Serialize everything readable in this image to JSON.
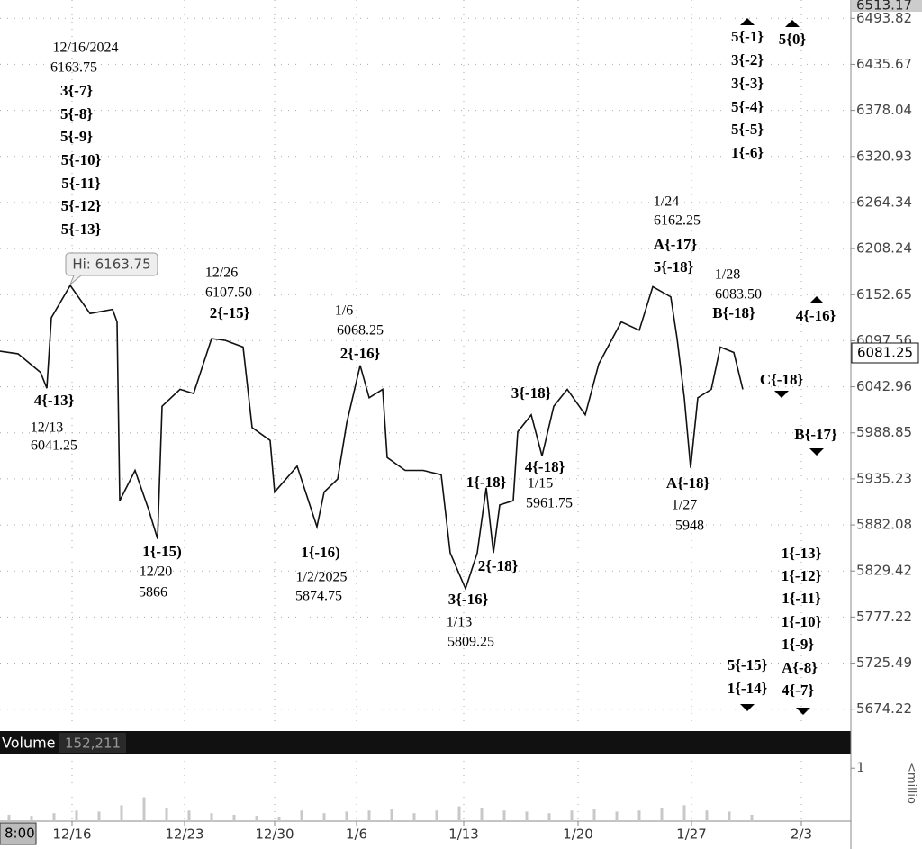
{
  "chart_data": {
    "type": "line",
    "log_scale": true,
    "grid": true,
    "line_color": "#111111",
    "ylim": [
      5657,
      6517
    ],
    "yticks": [
      6493.82,
      6435.67,
      6378.04,
      6320.93,
      6264.34,
      6208.24,
      6152.65,
      6097.56,
      6042.96,
      5988.85,
      5935.23,
      5882.08,
      5829.42,
      5777.22,
      5725.49,
      5674.22
    ],
    "xlim": [
      0,
      37.8
    ],
    "xticks": [
      {
        "value": 3.2,
        "label": "12/16"
      },
      {
        "value": 8.2,
        "label": "12/23"
      },
      {
        "value": 12.2,
        "label": "12/30"
      },
      {
        "value": 15.84,
        "label": "1/6"
      },
      {
        "value": 20.6,
        "label": "1/13"
      },
      {
        "value": 25.68,
        "label": "1/20"
      },
      {
        "value": 30.72,
        "label": "1/27"
      },
      {
        "value": 35.6,
        "label": "2/3"
      }
    ],
    "high_label": "6513.17",
    "last_price_label": "6081.25",
    "time_label": "8:00",
    "hi_callout": "Hi: 6163.75",
    "series": [
      {
        "x": [
          0,
          0.8,
          1.8,
          2.08,
          2.28,
          3.12,
          4,
          5,
          5.2,
          5.32,
          6,
          6.6,
          7,
          7.2,
          8,
          8.6,
          9.4,
          10,
          10.8,
          11.2,
          12,
          12.2,
          13.2,
          14.08,
          14.4,
          15,
          15.4,
          16,
          16.4,
          17,
          17.2,
          18,
          18.8,
          19.6,
          20,
          20.68,
          21.2,
          21.6,
          21.92,
          22.2,
          22.8,
          23,
          23.6,
          24.08,
          24.6,
          25.2,
          26,
          26.6,
          27.6,
          28.4,
          29,
          29.8,
          30.08,
          30.4,
          30.68,
          31,
          31.6,
          32,
          32.6,
          33
        ],
        "values": [
          6085,
          6082,
          6060,
          6041.25,
          6125,
          6163.75,
          6130,
          6135,
          6120,
          5910,
          5945,
          5900,
          5866,
          6020,
          6040,
          6035,
          6100,
          6098,
          6090,
          5995,
          5980,
          5920,
          5950,
          5880,
          5920,
          5935,
          6000,
          6068.25,
          6030,
          6040,
          5960,
          5945,
          5945,
          5940,
          5850,
          5809.25,
          5850,
          5925,
          5850,
          5905,
          5910,
          5990,
          6010,
          5961.75,
          6020,
          6040,
          6010,
          6070,
          6120,
          6110,
          6162.25,
          6150,
          6100,
          6030,
          5948,
          6030,
          6040,
          6090,
          6083.5,
          6040
        ]
      }
    ],
    "annotations": [
      "12/16/2024",
      "6163.75",
      "3{-7}",
      "5{-8}",
      "5{-9}",
      "5{-10}",
      "5{-11}",
      "5{-12}",
      "5{-13}",
      "4{-13}",
      "12/13",
      "6041.25",
      "12/26",
      "6107.50",
      "2{-15}",
      "1{-15)",
      "12/20",
      "5866",
      "1/6",
      "6068.25",
      "2{-16}",
      "1{-16)",
      "1/2/2025",
      "5874.75",
      "3{-16}",
      "1/13",
      "5809.25",
      "1{-18}",
      "2{-18}",
      "3{-18}",
      "4{-18}",
      "1/15",
      "5961.75",
      "1/24",
      "6162.25",
      "A{-17}",
      "5{-18}",
      "1/28",
      "6083.50",
      "B{-18}",
      "A{-18}",
      "1/27",
      "5948",
      "C{-18}",
      "5{-1}",
      "3{-2}",
      "3{-3}",
      "5{-4}",
      "5{-5}",
      "1{-6}",
      "5{0}",
      "4{-16}",
      "B{-17}",
      "1{-13}",
      "1{-12}",
      "1{-11}",
      "1{-10}",
      "1{-9}",
      "A{-8}",
      "4{-7}",
      "5{-15}",
      "1{-14}"
    ],
    "volume": {
      "title": "Volume",
      "value_label": "152,211",
      "axis_label": "<millio",
      "color": "#c8c8c8",
      "ylim": [
        0,
        1.14
      ],
      "yticks": [
        1
      ],
      "x": [
        0,
        1,
        2,
        3,
        4,
        5,
        6,
        7,
        8,
        9,
        10,
        11,
        12,
        13,
        14,
        15,
        16,
        17,
        18,
        19,
        20,
        21,
        22,
        23,
        24,
        25,
        26,
        27,
        28,
        29,
        30,
        31,
        32,
        33
      ],
      "values": [
        0.12,
        0.1,
        0.15,
        0.2,
        0.18,
        0.3,
        0.45,
        0.25,
        0.2,
        0.15,
        0.12,
        0.1,
        0.08,
        0.2,
        0.15,
        0.18,
        0.2,
        0.22,
        0.15,
        0.2,
        0.28,
        0.25,
        0.2,
        0.18,
        0.15,
        0.2,
        0.22,
        0.18,
        0.2,
        0.25,
        0.3,
        0.2,
        0.18,
        0.12
      ]
    }
  }
}
